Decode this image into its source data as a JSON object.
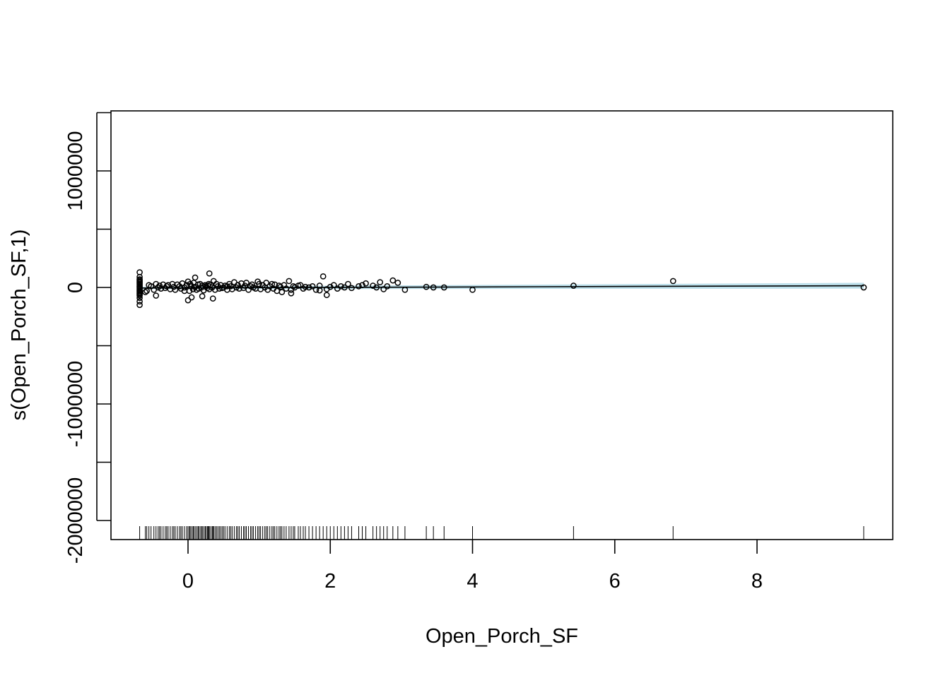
{
  "chart_data": {
    "type": "scatter",
    "title": "",
    "xlabel": "Open_Porch_SF",
    "ylabel": "s(Open_Porch_SF,1)",
    "xlim": [
      -1.2,
      9.8
    ],
    "ylim": [
      -2150000,
      1500000
    ],
    "x_ticks": [
      0,
      2,
      4,
      6,
      8
    ],
    "x_tick_labels": [
      "0",
      "2",
      "4",
      "6",
      "8"
    ],
    "y_ticks": [
      -2000000,
      -1500000,
      -1000000,
      -500000,
      0,
      500000,
      1000000,
      1500000
    ],
    "y_tick_labels": [
      {
        "value": -2000000,
        "label": "-2000000"
      },
      {
        "value": -1000000,
        "label": "-1000000"
      },
      {
        "value": 0,
        "label": "0"
      },
      {
        "value": 1000000,
        "label": "1000000"
      }
    ],
    "grid": false,
    "smooth": {
      "x": [
        -0.68,
        9.5
      ],
      "y": [
        -5000,
        15000
      ],
      "band_upper": [
        5000,
        40000
      ],
      "band_lower": [
        -15000,
        -10000
      ],
      "line_color": "#000000",
      "band_color": "#add8e6"
    },
    "series": [
      {
        "x": [
          -0.68,
          -0.68,
          -0.68,
          -0.68,
          -0.68,
          -0.68,
          -0.68,
          -0.68,
          -0.68,
          -0.68,
          -0.68,
          -0.68,
          -0.68,
          -0.68,
          -0.68,
          -0.68,
          -0.68,
          -0.68,
          -0.68,
          -0.68,
          -0.58,
          -0.55,
          -0.52,
          -0.48,
          -0.45,
          -0.42,
          -0.4,
          -0.38,
          -0.35,
          -0.32,
          -0.3,
          -0.28,
          -0.25,
          -0.22,
          -0.2,
          -0.18,
          -0.15,
          -0.12,
          -0.1,
          -0.08,
          -0.05,
          -0.02,
          0.0,
          0.02,
          0.03,
          0.05,
          0.07,
          0.08,
          0.1,
          0.12,
          0.14,
          0.15,
          0.17,
          0.19,
          0.2,
          0.22,
          0.24,
          0.25,
          0.27,
          0.29,
          0.3,
          0.32,
          0.34,
          0.36,
          0.38,
          0.4,
          0.42,
          0.44,
          0.46,
          0.48,
          0.5,
          0.52,
          0.55,
          0.58,
          0.6,
          0.62,
          0.65,
          0.68,
          0.7,
          0.72,
          0.75,
          0.78,
          0.8,
          0.82,
          0.85,
          0.88,
          0.9,
          0.92,
          0.95,
          0.98,
          1.0,
          1.02,
          1.05,
          1.08,
          1.1,
          1.12,
          1.15,
          1.18,
          1.2,
          1.22,
          1.25,
          1.28,
          1.3,
          1.32,
          1.35,
          1.38,
          1.42,
          1.45,
          1.48,
          1.5,
          1.55,
          1.58,
          1.62,
          1.65,
          1.7,
          1.75,
          1.8,
          1.85,
          1.9,
          1.95,
          2.0,
          2.05,
          2.1,
          2.15,
          2.2,
          2.25,
          2.3,
          2.4,
          2.45,
          2.5,
          2.6,
          2.65,
          2.7,
          2.75,
          2.8,
          2.88,
          2.95,
          3.05,
          3.35,
          3.45,
          3.6,
          4.0,
          5.42,
          6.82,
          9.5,
          -0.6,
          -0.45,
          0.0,
          0.05,
          0.2,
          0.3,
          0.35,
          1.45,
          1.85,
          1.95,
          0.28,
          -0.05,
          0.1,
          0.55,
          0.7
        ],
        "y": [
          130000,
          -120000,
          -150000,
          90000,
          70000,
          50000,
          30000,
          20000,
          10000,
          0,
          -10000,
          -20000,
          -30000,
          -50000,
          -70000,
          -90000,
          60000,
          40000,
          -40000,
          -60000,
          -30000,
          20000,
          10000,
          -20000,
          30000,
          0,
          15000,
          -10000,
          25000,
          -5000,
          10000,
          20000,
          -15000,
          30000,
          5000,
          -20000,
          25000,
          10000,
          -10000,
          35000,
          0,
          20000,
          50000,
          -30000,
          30000,
          10000,
          -15000,
          40000,
          5000,
          -20000,
          25000,
          -10000,
          30000,
          0,
          15000,
          -25000,
          20000,
          10000,
          -5000,
          30000,
          -15000,
          25000,
          0,
          55000,
          -20000,
          30000,
          10000,
          -10000,
          20000,
          -5000,
          0,
          15000,
          -20000,
          30000,
          10000,
          -15000,
          45000,
          0,
          20000,
          -10000,
          35000,
          -5000,
          15000,
          40000,
          -20000,
          10000,
          25000,
          0,
          -10000,
          50000,
          30000,
          -15000,
          20000,
          0,
          40000,
          -20000,
          10000,
          30000,
          -10000,
          25000,
          -30000,
          15000,
          5000,
          -40000,
          20000,
          -10000,
          55000,
          -20000,
          10000,
          0,
          15000,
          20000,
          -10000,
          5000,
          0,
          10000,
          -20000,
          15000,
          95000,
          -15000,
          5000,
          20000,
          -10000,
          10000,
          0,
          30000,
          -5000,
          10000,
          20000,
          35000,
          15000,
          0,
          45000,
          -15000,
          10000,
          60000,
          40000,
          -20000,
          5000,
          0,
          0,
          -20000,
          15000,
          55000,
          0,
          -40000,
          -70000,
          -110000,
          -85000,
          -75000,
          120000,
          -95000,
          -50000,
          -25000,
          -65000,
          15000,
          -30000,
          85000,
          10000,
          20000
        ]
      }
    ]
  }
}
